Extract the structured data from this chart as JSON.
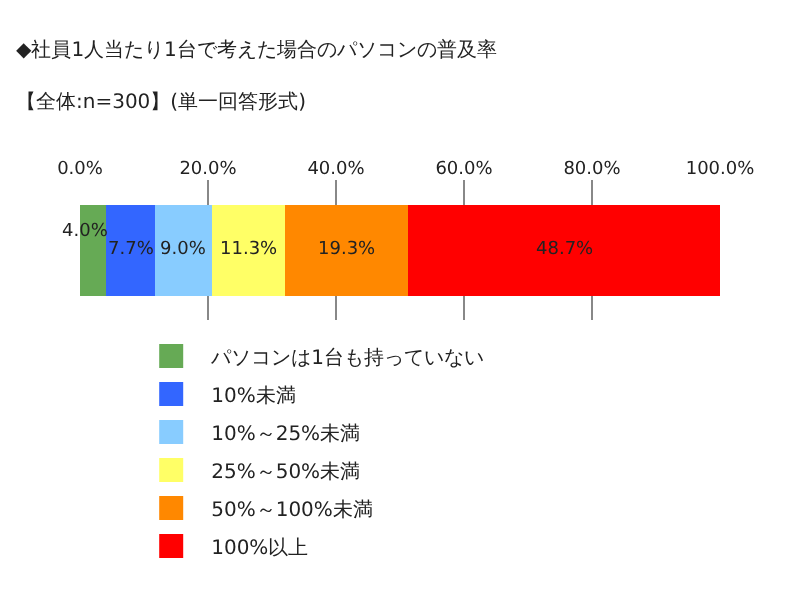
{
  "chart_data": {
    "type": "bar",
    "orientation": "horizontal",
    "stacked": true,
    "title": "◆社員1人当たり1台で考えた場合のパソコンの普及率",
    "subtitle": "【全体:n=300】(単一回答形式)",
    "categories": [
      null
    ],
    "series": [
      {
        "name": "パソコンは1台も持っていない",
        "color": "#66aa55",
        "values": [
          4.0
        ],
        "value_labels": [
          "4.0%"
        ]
      },
      {
        "name": "10%未満",
        "color": "#3366ff",
        "values": [
          7.7
        ],
        "value_labels": [
          "7.7%"
        ]
      },
      {
        "name": "10%～25%未満",
        "color": "#88ccff",
        "values": [
          9.0
        ],
        "value_labels": [
          "9.0%"
        ]
      },
      {
        "name": "25%～50%未満",
        "color": "#ffff66",
        "values": [
          11.3
        ],
        "value_labels": [
          "11.3%"
        ]
      },
      {
        "name": "50%～100%未満",
        "color": "#ff8800",
        "values": [
          19.3
        ],
        "value_labels": [
          "19.3%"
        ]
      },
      {
        "name": "100%以上",
        "color": "#ff0000",
        "values": [
          48.7
        ],
        "value_labels": [
          "48.7%"
        ]
      }
    ],
    "xlim": [
      0,
      100
    ],
    "xticks": [
      {
        "value": 0,
        "label": "0.0%"
      },
      {
        "value": 20,
        "label": "20.0%"
      },
      {
        "value": 40,
        "label": "40.0%"
      },
      {
        "value": 60,
        "label": "60.0%"
      },
      {
        "value": 80,
        "label": "80.0%"
      },
      {
        "value": 100,
        "label": "100.0%"
      }
    ],
    "grid": "x",
    "legend": "bottom"
  }
}
